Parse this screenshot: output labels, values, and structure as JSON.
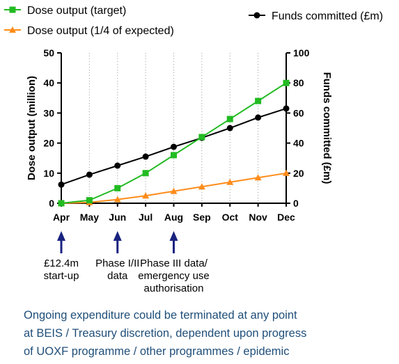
{
  "chart_data": {
    "type": "line",
    "categories": [
      "Apr",
      "May",
      "Jun",
      "Jul",
      "Aug",
      "Sep",
      "Oct",
      "Nov",
      "Dec"
    ],
    "series": [
      {
        "name": "Dose output (target)",
        "axis": "left",
        "color": "#22bb22",
        "marker": "square",
        "values": [
          0,
          1,
          5,
          10,
          16,
          22,
          28,
          34,
          40
        ]
      },
      {
        "name": "Dose output (1/4 of expected)",
        "axis": "left",
        "color": "#ff8c1a",
        "marker": "triangle",
        "values": [
          0,
          0.25,
          1.25,
          2.5,
          4,
          5.5,
          7,
          8.5,
          10
        ]
      },
      {
        "name": "Funds committed (£m)",
        "axis": "right",
        "color": "#000000",
        "marker": "circle",
        "values": [
          12.4,
          19,
          25,
          31,
          37.5,
          43.5,
          50,
          57,
          63
        ]
      }
    ],
    "y_left": {
      "label": "Dose output (million)",
      "range": [
        0,
        50
      ],
      "ticks": [
        0,
        10,
        20,
        30,
        40,
        50
      ]
    },
    "y_right": {
      "label": "Funds committed (£m)",
      "range": [
        0,
        100
      ],
      "ticks": [
        0,
        20,
        40,
        60,
        80,
        100
      ]
    },
    "grid": "vertical dotted",
    "legend": "top",
    "annotations": [
      {
        "category": "Apr",
        "lines": [
          "£12.4m",
          "start-up"
        ]
      },
      {
        "category": "Jun",
        "lines": [
          "Phase I/II",
          "data"
        ]
      },
      {
        "category": "Aug",
        "lines": [
          "Phase III data/",
          "emergency use",
          "authorisation"
        ]
      }
    ],
    "annotation_arrow_color": "#1a237e"
  },
  "footnote": [
    "Ongoing expenditure could be terminated at any point",
    "at BEIS / Treasury discretion, dependent upon progress",
    "of UOXF programme / other programmes / epidemic"
  ]
}
